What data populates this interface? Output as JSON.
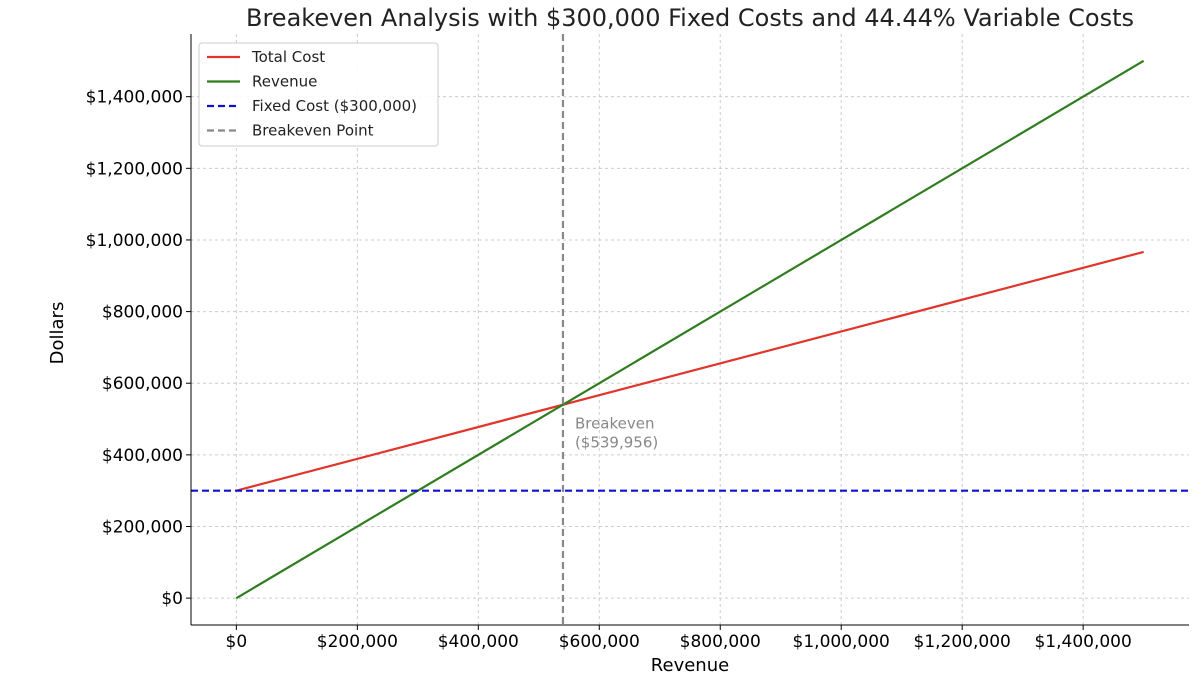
{
  "chart_data": {
    "type": "line",
    "title": "Breakeven Analysis with $300,000 Fixed Costs and 44.44% Variable Costs",
    "xlabel": "Revenue",
    "ylabel": "Dollars",
    "xlim": [
      -75000,
      1575000
    ],
    "ylim": [
      -75000,
      1575000
    ],
    "x_ticks": [
      0,
      200000,
      400000,
      600000,
      800000,
      1000000,
      1200000,
      1400000
    ],
    "x_tick_labels": [
      "$0",
      "$200,000",
      "$400,000",
      "$600,000",
      "$800,000",
      "$1,000,000",
      "$1,200,000",
      "$1,400,000"
    ],
    "y_ticks": [
      0,
      200000,
      400000,
      600000,
      800000,
      1000000,
      1200000,
      1400000
    ],
    "y_tick_labels": [
      "$0",
      "$200,000",
      "$400,000",
      "$600,000",
      "$800,000",
      "$1,000,000",
      "$1,200,000",
      "$1,400,000"
    ],
    "grid": true,
    "legend_position": "top-left",
    "series": [
      {
        "name": "Total Cost",
        "color": "#e0352b",
        "style": "solid",
        "x": [
          0,
          1500000
        ],
        "y": [
          300000,
          966600
        ]
      },
      {
        "name": "Revenue",
        "color": "#2e7d1e",
        "style": "solid",
        "x": [
          0,
          1500000
        ],
        "y": [
          0,
          1500000
        ]
      },
      {
        "name": "Fixed Cost ($300,000)",
        "color": "#1010d0",
        "style": "dashed",
        "horizontal_y": 300000
      },
      {
        "name": "Breakeven Point",
        "color": "#888888",
        "style": "dashed",
        "vertical_x": 539956
      }
    ],
    "annotations": [
      {
        "lines": [
          "Breakeven",
          "($539,956)"
        ],
        "x": 539956,
        "y": 540000,
        "color": "#888888"
      }
    ]
  }
}
